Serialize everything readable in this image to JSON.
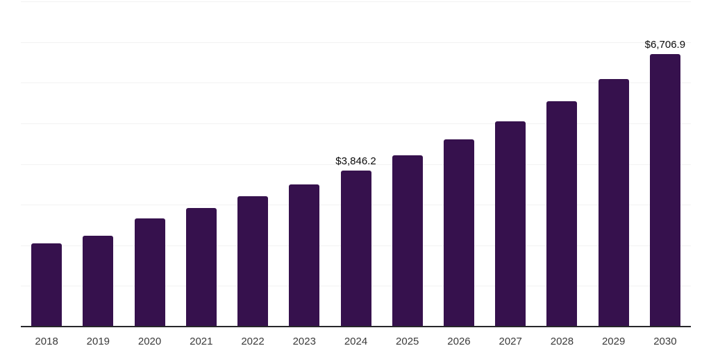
{
  "page": {
    "background_color": "#ffffff"
  },
  "chart_data": {
    "type": "bar",
    "title": "",
    "xlabel": "",
    "ylabel": "",
    "categories": [
      "2018",
      "2019",
      "2020",
      "2021",
      "2022",
      "2023",
      "2024",
      "2025",
      "2026",
      "2027",
      "2028",
      "2029",
      "2030"
    ],
    "values": [
      2050,
      2240,
      2660,
      2915,
      3200,
      3505,
      3846.2,
      4210,
      4610,
      5050,
      5540,
      6090,
      6706.9
    ],
    "labeled_points": [
      {
        "category": "2024",
        "label": "$3,846.2"
      },
      {
        "category": "2030",
        "label": "$6,706.9"
      }
    ],
    "ylim": [
      0,
      8000
    ],
    "gridline_step": 1000,
    "grid": "horizontal",
    "legend_position": "none",
    "y_axis_labels_visible": false,
    "bar_color": "#36114D",
    "axis_line_color": "#27272a",
    "gridline_color": "#f2f2f2",
    "value_label_color": "#0a0a0a",
    "tick_label_color": "#3a3a3a"
  }
}
